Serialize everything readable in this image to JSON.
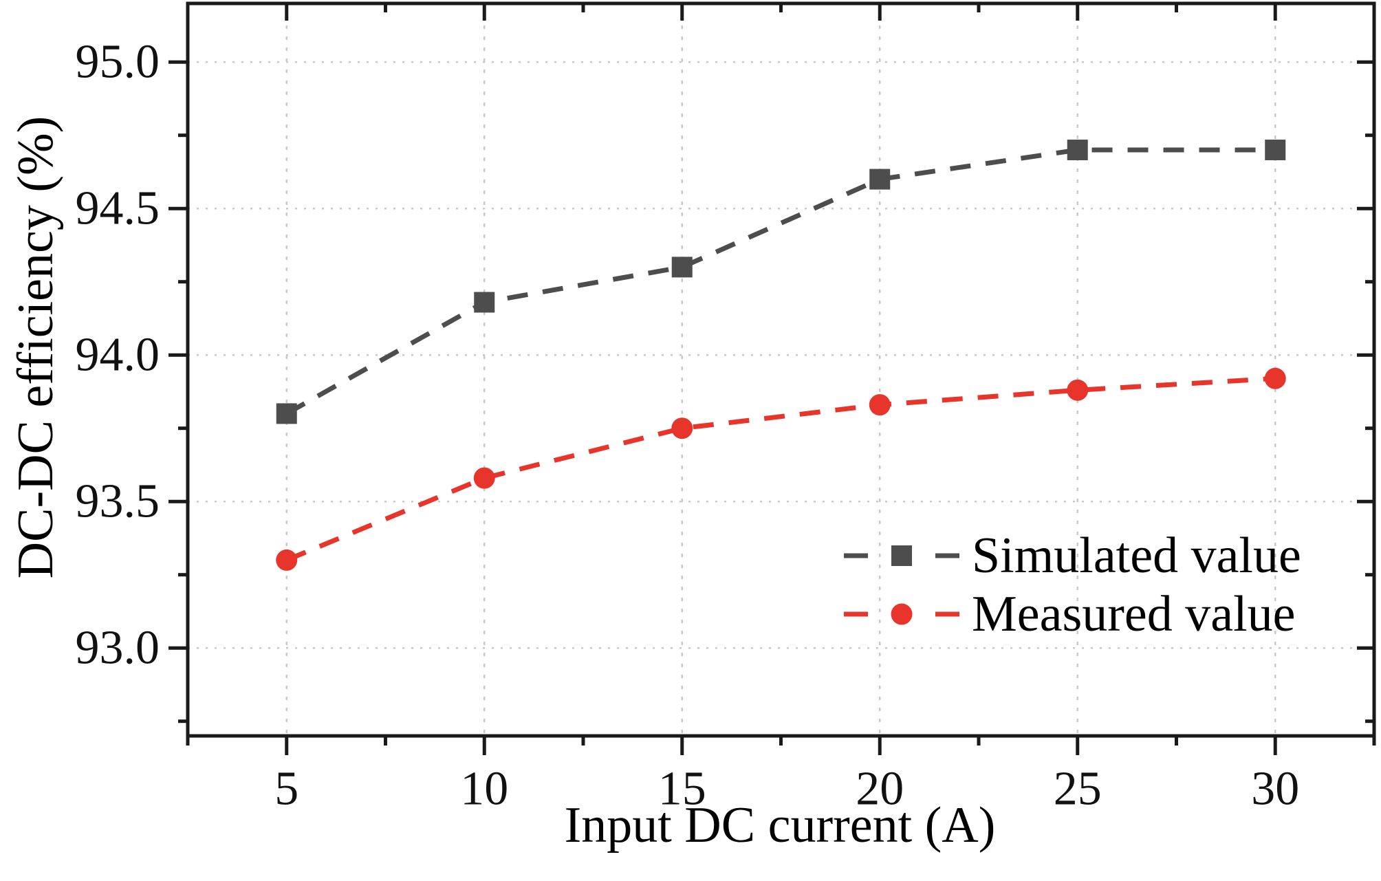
{
  "chart_data": {
    "type": "line",
    "title": "",
    "xlabel": "Input DC current (A)",
    "ylabel": "DC-DC efficiency (%)",
    "x": [
      5,
      10,
      15,
      20,
      25,
      30
    ],
    "series": [
      {
        "name": "Simulated value",
        "color": "#4d4d4d",
        "marker": "square",
        "linestyle": "dashed",
        "values": [
          93.8,
          94.18,
          94.3,
          94.6,
          94.7,
          94.7
        ]
      },
      {
        "name": "Measured value",
        "color": "#e8352c",
        "marker": "circle",
        "linestyle": "dashed",
        "values": [
          93.3,
          93.58,
          93.75,
          93.83,
          93.88,
          93.92
        ]
      }
    ],
    "xlim": [
      2.5,
      32.5
    ],
    "ylim": [
      92.7,
      95.2
    ],
    "x_ticks": [
      5,
      10,
      15,
      20,
      25,
      30
    ],
    "x_tick_labels": [
      "5",
      "10",
      "15",
      "20",
      "25",
      "30"
    ],
    "x_minor_ticks": [
      2.5,
      7.5,
      12.5,
      17.5,
      22.5,
      27.5,
      32.5
    ],
    "y_ticks": [
      93.0,
      93.5,
      94.0,
      94.5,
      95.0
    ],
    "y_tick_labels": [
      "93.0",
      "93.5",
      "94.0",
      "94.5",
      "95.0"
    ],
    "y_minor_ticks": [
      92.75,
      93.25,
      93.75,
      94.25,
      94.75
    ],
    "grid": true,
    "grid_style": "dotted",
    "legend_position": "lower right",
    "colors": {
      "axis": "#1a1a1a",
      "grid": "#c9c9c9",
      "background": "#ffffff",
      "text": "#111111"
    }
  }
}
